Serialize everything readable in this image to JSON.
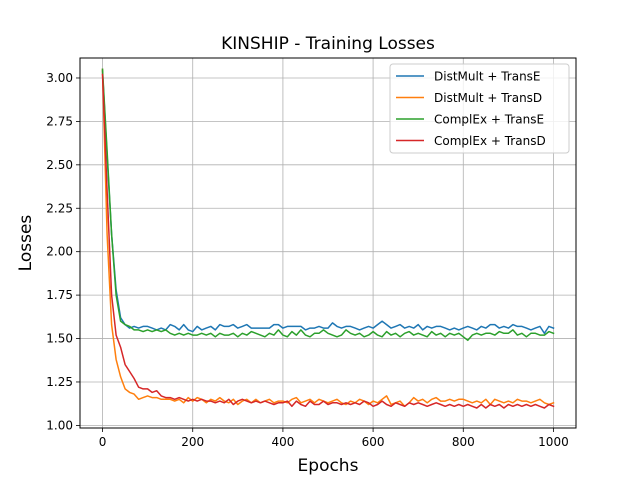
{
  "chart_data": {
    "type": "line",
    "title": "KINSHIP - Training Losses",
    "xlabel": "Epochs",
    "ylabel": "Losses",
    "xlim": [
      -50,
      1050
    ],
    "ylim": [
      0.985,
      3.115
    ],
    "xticks": [
      0,
      200,
      400,
      600,
      800,
      1000
    ],
    "yticks": [
      1.0,
      1.25,
      1.5,
      1.75,
      2.0,
      2.25,
      2.5,
      2.75,
      3.0
    ],
    "xtick_labels": [
      "0",
      "200",
      "400",
      "600",
      "800",
      "1000"
    ],
    "ytick_labels": [
      "1.00",
      "1.25",
      "1.50",
      "1.75",
      "2.00",
      "2.25",
      "2.50",
      "2.75",
      "3.00"
    ],
    "grid": true,
    "legend_position": "top-right",
    "x": [
      0,
      10,
      20,
      30,
      40,
      50,
      60,
      70,
      80,
      90,
      100,
      110,
      120,
      130,
      140,
      150,
      160,
      170,
      180,
      190,
      200,
      210,
      220,
      230,
      240,
      250,
      260,
      270,
      280,
      290,
      300,
      310,
      320,
      330,
      340,
      350,
      360,
      370,
      380,
      390,
      400,
      410,
      420,
      430,
      440,
      450,
      460,
      470,
      480,
      490,
      500,
      510,
      520,
      530,
      540,
      550,
      560,
      570,
      580,
      590,
      600,
      610,
      620,
      630,
      640,
      650,
      660,
      670,
      680,
      690,
      700,
      710,
      720,
      730,
      740,
      750,
      760,
      770,
      780,
      790,
      800,
      810,
      820,
      830,
      840,
      850,
      860,
      870,
      880,
      890,
      900,
      910,
      920,
      930,
      940,
      950,
      960,
      970,
      980,
      990,
      1000
    ],
    "series": [
      {
        "name": "DistMult + TransE",
        "color": "#1f77b4",
        "values": [
          3.04,
          2.55,
          2.1,
          1.78,
          1.62,
          1.58,
          1.56,
          1.57,
          1.56,
          1.57,
          1.57,
          1.56,
          1.55,
          1.56,
          1.55,
          1.58,
          1.57,
          1.55,
          1.58,
          1.55,
          1.54,
          1.57,
          1.55,
          1.56,
          1.57,
          1.55,
          1.58,
          1.57,
          1.57,
          1.58,
          1.56,
          1.57,
          1.58,
          1.56,
          1.56,
          1.56,
          1.56,
          1.56,
          1.58,
          1.58,
          1.56,
          1.57,
          1.57,
          1.57,
          1.57,
          1.55,
          1.56,
          1.56,
          1.57,
          1.56,
          1.56,
          1.59,
          1.57,
          1.56,
          1.57,
          1.57,
          1.56,
          1.55,
          1.56,
          1.57,
          1.56,
          1.58,
          1.6,
          1.58,
          1.56,
          1.57,
          1.58,
          1.56,
          1.57,
          1.56,
          1.58,
          1.55,
          1.57,
          1.56,
          1.57,
          1.57,
          1.56,
          1.55,
          1.56,
          1.55,
          1.56,
          1.57,
          1.56,
          1.55,
          1.57,
          1.56,
          1.58,
          1.58,
          1.56,
          1.57,
          1.56,
          1.58,
          1.57,
          1.57,
          1.56,
          1.55,
          1.56,
          1.57,
          1.53,
          1.57,
          1.56
        ]
      },
      {
        "name": "DistMult + TransD",
        "color": "#ff7f0e",
        "values": [
          3.05,
          2.1,
          1.58,
          1.38,
          1.28,
          1.21,
          1.19,
          1.18,
          1.15,
          1.16,
          1.17,
          1.16,
          1.16,
          1.15,
          1.15,
          1.15,
          1.14,
          1.15,
          1.13,
          1.16,
          1.14,
          1.16,
          1.15,
          1.13,
          1.15,
          1.14,
          1.16,
          1.14,
          1.13,
          1.15,
          1.12,
          1.14,
          1.15,
          1.13,
          1.15,
          1.13,
          1.14,
          1.15,
          1.13,
          1.14,
          1.14,
          1.13,
          1.15,
          1.16,
          1.13,
          1.14,
          1.15,
          1.13,
          1.15,
          1.14,
          1.13,
          1.14,
          1.15,
          1.13,
          1.12,
          1.14,
          1.13,
          1.15,
          1.14,
          1.12,
          1.14,
          1.13,
          1.15,
          1.17,
          1.12,
          1.13,
          1.14,
          1.11,
          1.13,
          1.16,
          1.14,
          1.15,
          1.13,
          1.15,
          1.16,
          1.14,
          1.14,
          1.15,
          1.14,
          1.15,
          1.15,
          1.14,
          1.13,
          1.14,
          1.13,
          1.15,
          1.12,
          1.15,
          1.14,
          1.13,
          1.14,
          1.13,
          1.15,
          1.14,
          1.14,
          1.13,
          1.14,
          1.15,
          1.13,
          1.12,
          1.13
        ]
      },
      {
        "name": "ComplEx + TransE",
        "color": "#2ca02c",
        "values": [
          3.05,
          2.58,
          2.1,
          1.75,
          1.6,
          1.58,
          1.57,
          1.55,
          1.55,
          1.54,
          1.55,
          1.54,
          1.55,
          1.54,
          1.55,
          1.53,
          1.52,
          1.53,
          1.52,
          1.53,
          1.52,
          1.52,
          1.53,
          1.52,
          1.53,
          1.51,
          1.53,
          1.52,
          1.52,
          1.53,
          1.51,
          1.53,
          1.52,
          1.54,
          1.53,
          1.52,
          1.51,
          1.53,
          1.52,
          1.55,
          1.52,
          1.51,
          1.54,
          1.52,
          1.55,
          1.52,
          1.51,
          1.53,
          1.53,
          1.55,
          1.53,
          1.52,
          1.51,
          1.52,
          1.55,
          1.53,
          1.52,
          1.53,
          1.51,
          1.52,
          1.54,
          1.52,
          1.51,
          1.54,
          1.52,
          1.53,
          1.51,
          1.53,
          1.54,
          1.52,
          1.53,
          1.52,
          1.51,
          1.54,
          1.52,
          1.53,
          1.51,
          1.53,
          1.52,
          1.53,
          1.51,
          1.49,
          1.52,
          1.53,
          1.52,
          1.53,
          1.53,
          1.52,
          1.54,
          1.53,
          1.53,
          1.55,
          1.52,
          1.53,
          1.51,
          1.53,
          1.53,
          1.52,
          1.52,
          1.54,
          1.53
        ]
      },
      {
        "name": "ComplEx + TransD",
        "color": "#d62728",
        "values": [
          3.02,
          2.35,
          1.75,
          1.52,
          1.45,
          1.35,
          1.31,
          1.27,
          1.22,
          1.21,
          1.21,
          1.19,
          1.2,
          1.17,
          1.16,
          1.16,
          1.15,
          1.16,
          1.15,
          1.14,
          1.15,
          1.14,
          1.15,
          1.14,
          1.14,
          1.13,
          1.14,
          1.13,
          1.15,
          1.12,
          1.14,
          1.15,
          1.14,
          1.13,
          1.14,
          1.13,
          1.14,
          1.13,
          1.12,
          1.13,
          1.13,
          1.14,
          1.11,
          1.14,
          1.12,
          1.11,
          1.14,
          1.12,
          1.12,
          1.14,
          1.12,
          1.13,
          1.13,
          1.12,
          1.13,
          1.12,
          1.13,
          1.12,
          1.14,
          1.13,
          1.11,
          1.12,
          1.14,
          1.12,
          1.11,
          1.13,
          1.12,
          1.11,
          1.13,
          1.12,
          1.13,
          1.12,
          1.11,
          1.12,
          1.13,
          1.12,
          1.11,
          1.12,
          1.11,
          1.12,
          1.11,
          1.12,
          1.11,
          1.1,
          1.12,
          1.1,
          1.12,
          1.11,
          1.12,
          1.1,
          1.12,
          1.11,
          1.12,
          1.11,
          1.12,
          1.11,
          1.12,
          1.11,
          1.1,
          1.12,
          1.11
        ]
      }
    ]
  }
}
